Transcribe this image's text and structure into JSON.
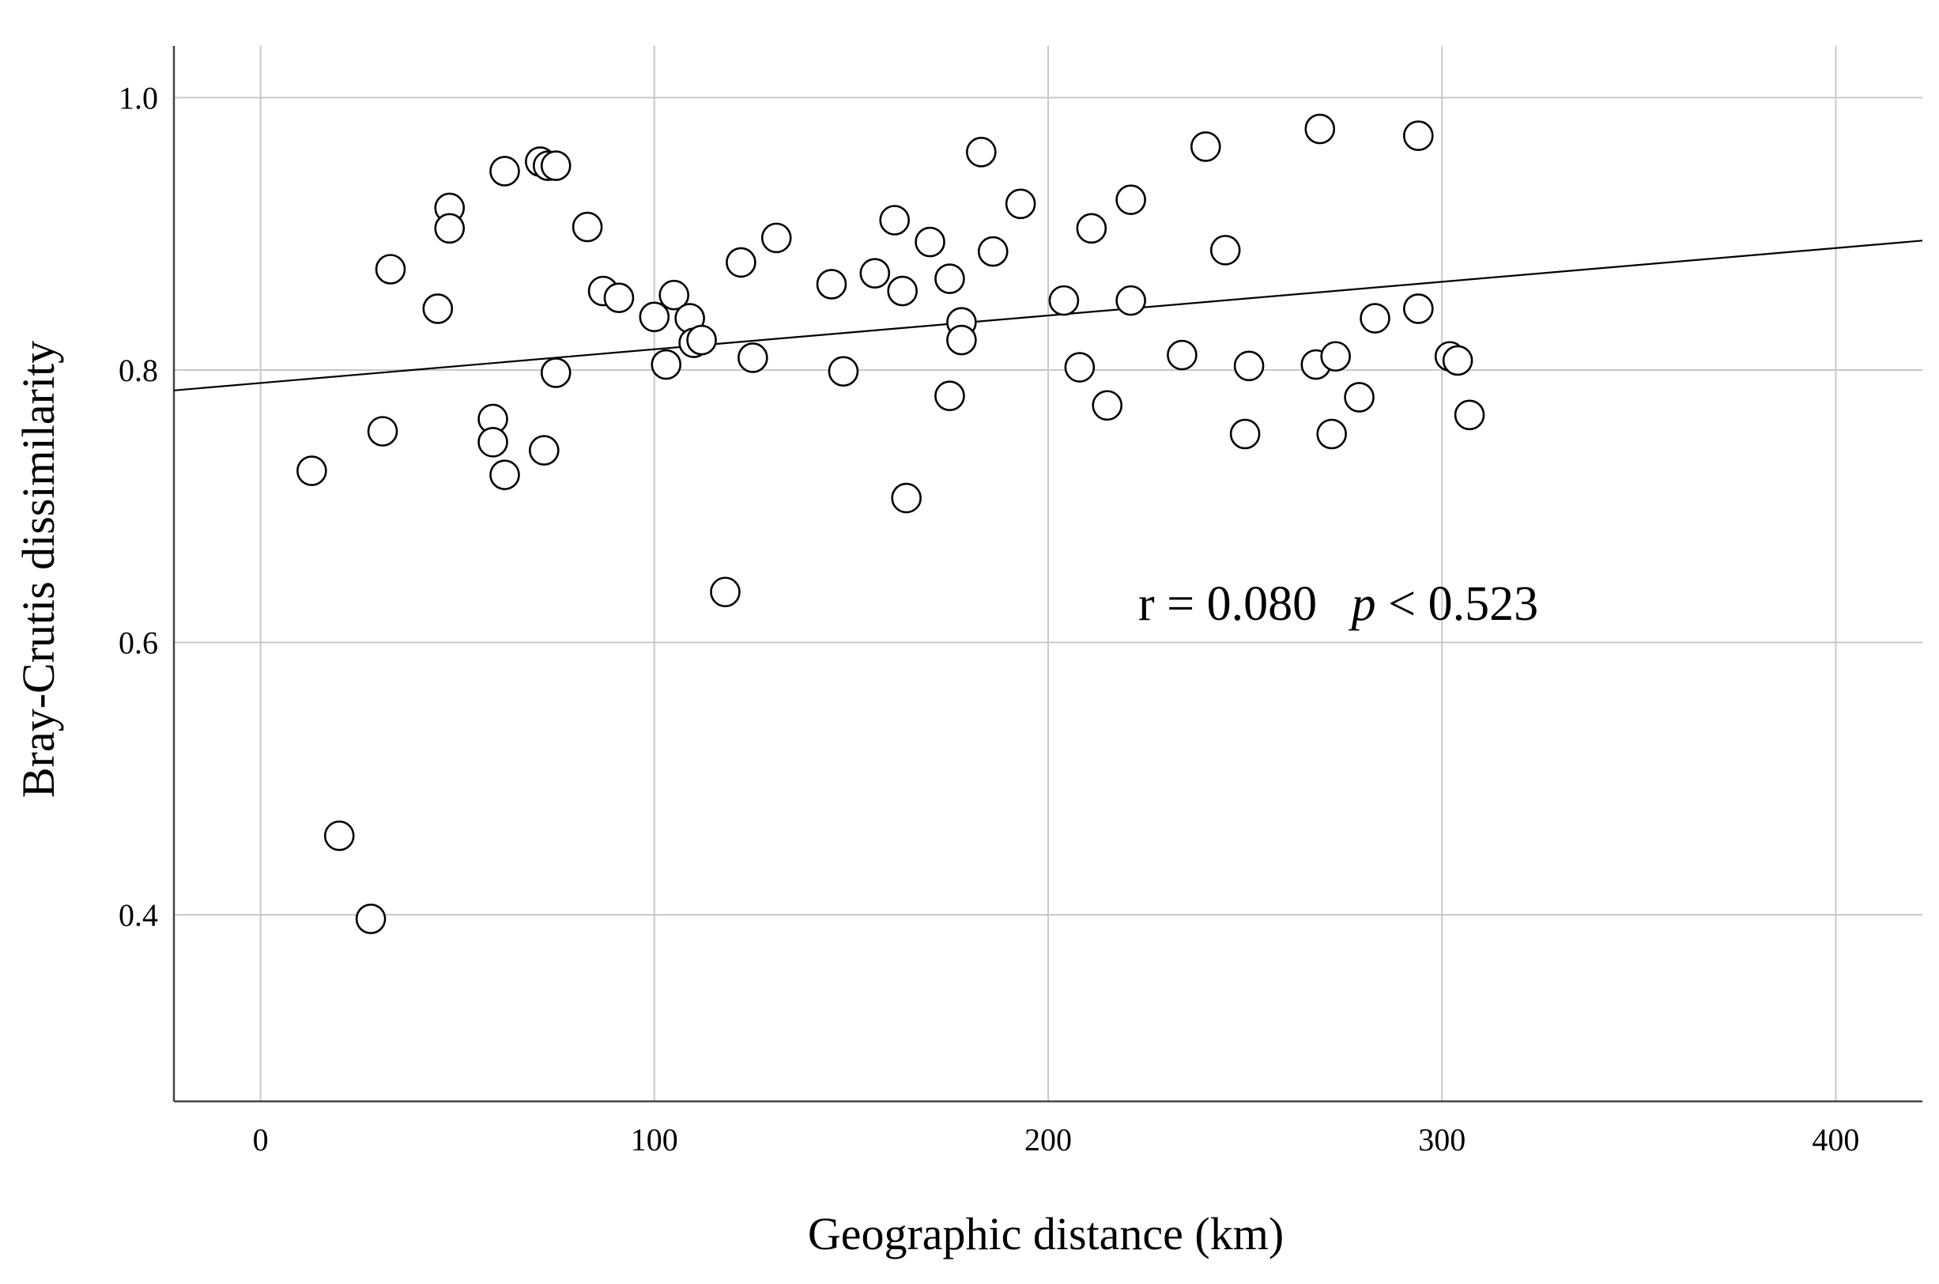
{
  "chart_data": {
    "type": "scatter",
    "xlabel": "Geographic distance (km)",
    "ylabel": "Bray-Crutis dissimilarity",
    "xlim": [
      -22,
      422
    ],
    "ylim": [
      0.263,
      1.038
    ],
    "x_ticks": [
      0,
      100,
      200,
      300,
      400
    ],
    "x_tick_labels": [
      "0",
      "100",
      "200",
      "300",
      "400"
    ],
    "y_ticks": [
      0.4,
      0.6,
      0.8,
      1.0
    ],
    "y_tick_labels": [
      "0.4",
      "0.6",
      "0.8",
      "1.0"
    ],
    "grid": true,
    "annotation": {
      "r_text": "r = 0.080",
      "p_symbol": "p",
      "p_text": " < 0.523"
    },
    "fit_line": {
      "x": [
        -22,
        422
      ],
      "y": [
        0.785,
        0.895
      ]
    },
    "points": [
      {
        "x": 13,
        "y": 0.726
      },
      {
        "x": 20,
        "y": 0.458
      },
      {
        "x": 28,
        "y": 0.397
      },
      {
        "x": 31,
        "y": 0.755
      },
      {
        "x": 33,
        "y": 0.874
      },
      {
        "x": 45,
        "y": 0.845
      },
      {
        "x": 48,
        "y": 0.919
      },
      {
        "x": 48,
        "y": 0.904
      },
      {
        "x": 59,
        "y": 0.764
      },
      {
        "x": 59,
        "y": 0.747
      },
      {
        "x": 62,
        "y": 0.946
      },
      {
        "x": 62,
        "y": 0.723
      },
      {
        "x": 71,
        "y": 0.953
      },
      {
        "x": 72,
        "y": 0.741
      },
      {
        "x": 73,
        "y": 0.95
      },
      {
        "x": 75,
        "y": 0.95
      },
      {
        "x": 75,
        "y": 0.798
      },
      {
        "x": 83,
        "y": 0.905
      },
      {
        "x": 87,
        "y": 0.858
      },
      {
        "x": 91,
        "y": 0.853
      },
      {
        "x": 100,
        "y": 0.839
      },
      {
        "x": 103,
        "y": 0.804
      },
      {
        "x": 105,
        "y": 0.855
      },
      {
        "x": 109,
        "y": 0.838
      },
      {
        "x": 110,
        "y": 0.82
      },
      {
        "x": 112,
        "y": 0.822
      },
      {
        "x": 118,
        "y": 0.637
      },
      {
        "x": 122,
        "y": 0.879
      },
      {
        "x": 125,
        "y": 0.809
      },
      {
        "x": 131,
        "y": 0.897
      },
      {
        "x": 145,
        "y": 0.863
      },
      {
        "x": 148,
        "y": 0.799
      },
      {
        "x": 156,
        "y": 0.871
      },
      {
        "x": 161,
        "y": 0.91
      },
      {
        "x": 163,
        "y": 0.858
      },
      {
        "x": 164,
        "y": 0.706
      },
      {
        "x": 170,
        "y": 0.894
      },
      {
        "x": 175,
        "y": 0.867
      },
      {
        "x": 175,
        "y": 0.781
      },
      {
        "x": 178,
        "y": 0.835
      },
      {
        "x": 178,
        "y": 0.822
      },
      {
        "x": 183,
        "y": 0.96
      },
      {
        "x": 186,
        "y": 0.887
      },
      {
        "x": 193,
        "y": 0.922
      },
      {
        "x": 204,
        "y": 0.851
      },
      {
        "x": 208,
        "y": 0.802
      },
      {
        "x": 211,
        "y": 0.904
      },
      {
        "x": 215,
        "y": 0.774
      },
      {
        "x": 221,
        "y": 0.925
      },
      {
        "x": 221,
        "y": 0.851
      },
      {
        "x": 234,
        "y": 0.811
      },
      {
        "x": 240,
        "y": 0.964
      },
      {
        "x": 245,
        "y": 0.888
      },
      {
        "x": 250,
        "y": 0.753
      },
      {
        "x": 251,
        "y": 0.803
      },
      {
        "x": 268,
        "y": 0.804
      },
      {
        "x": 269,
        "y": 0.977
      },
      {
        "x": 272,
        "y": 0.753
      },
      {
        "x": 273,
        "y": 0.81
      },
      {
        "x": 279,
        "y": 0.78
      },
      {
        "x": 283,
        "y": 0.838
      },
      {
        "x": 294,
        "y": 0.845
      },
      {
        "x": 294,
        "y": 0.972
      },
      {
        "x": 302,
        "y": 0.81
      },
      {
        "x": 304,
        "y": 0.807
      },
      {
        "x": 307,
        "y": 0.767
      }
    ]
  }
}
